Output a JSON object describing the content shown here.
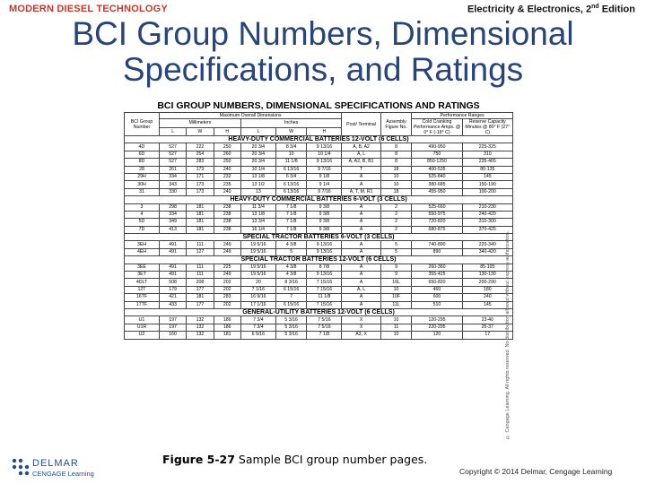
{
  "header": {
    "left": "MODERN DIESEL TECHNOLOGY",
    "right_main": "Electricity & Electronics, 2",
    "right_sup": "nd",
    "right_tail": " Edition"
  },
  "title": {
    "line1": "BCI Group Numbers, Dimensional",
    "line2": "Specifications, and Ratings"
  },
  "table": {
    "title": "BCI GROUP NUMBERS, DIMENSIONAL SPECIFICATIONS AND RATINGS",
    "headers": {
      "bci": "BCI Group Number",
      "max_dim": "Maximum Overall Dimensions",
      "mm": "Millimeters",
      "inches": "Inches",
      "post": "Post/ Terminal",
      "assembly": "Assembly Figure No.",
      "perf": "Performance Ranges",
      "cold": "Cold Cranking Performance Amps. @ 0° F (-18° C)",
      "reserve": "Reserve Capacity Minutes @ 80° F (27° C)",
      "L": "L",
      "W": "W",
      "H": "H"
    },
    "sections": [
      {
        "label": "HEAVY-DUTY COMMERCIAL BATTERIES 12-VOLT (6 CELLS)",
        "rows": [
          [
            "4D",
            "527",
            "222",
            "250",
            "20 3/4",
            "8 3/4",
            "9 13/16",
            "A, B, A2",
            "8",
            "490-950",
            "225-325"
          ],
          [
            "6D",
            "527",
            "254",
            "260",
            "20 3/4",
            "10",
            "10 1/4",
            "A, L",
            "8",
            "750",
            "310"
          ],
          [
            "8D",
            "527",
            "283",
            "250",
            "20 3/4",
            "11 1/8",
            "9 13/16",
            "A, A2, B, B1",
            "8",
            "850-1250",
            "235-465"
          ],
          [
            "28",
            "261",
            "173",
            "240",
            "10 1/4",
            "6 13/16",
            "9 7/16",
            "T",
            "18",
            "400-535",
            "80-135"
          ],
          [
            "29H",
            "334",
            "171",
            "232",
            "13 1/8",
            "6 3/4",
            "9 1/8",
            "A",
            "10",
            "525-840",
            "145"
          ],
          [
            "30H",
            "343",
            "173",
            "235",
            "13 1/2",
            "6 13/16",
            "9 1/4",
            "A",
            "10",
            "380-685",
            "150-190"
          ],
          [
            "31",
            "330",
            "173",
            "240",
            "13",
            "6 13/16",
            "9 7/16",
            "A, T, M, R1",
            "18",
            "455-950",
            "100-200"
          ]
        ]
      },
      {
        "label": "HEAVY-DUTY COMMERCIAL BATTERIES 6-VOLT (3 CELLS)",
        "rows": [
          [
            "3",
            "298",
            "181",
            "238",
            "11 3/4",
            "7 1/8",
            "9 3/8",
            "A",
            "2",
            "525-660",
            "210-230"
          ],
          [
            "4",
            "334",
            "181",
            "238",
            "13 1/8",
            "7 1/8",
            "9 3/8",
            "A",
            "2",
            "550-975",
            "240-420"
          ],
          [
            "5D",
            "349",
            "181",
            "238",
            "13 3/4",
            "7 1/8",
            "9 3/8",
            "A",
            "2",
            "720-820",
            "310-300"
          ],
          [
            "7D",
            "413",
            "181",
            "238",
            "16 1/4",
            "7 1/8",
            "9 3/8",
            "A",
            "2",
            "680-875",
            "370-425"
          ]
        ]
      },
      {
        "label": "SPECIAL TRACTOR BATTERIES 6-VOLT (3 CELLS)",
        "rows": [
          [
            "3EH",
            "491",
            "111",
            "249",
            "19 5/16",
            "4 3/8",
            "9 13/16",
            "A",
            "5",
            "740-890",
            "220-340"
          ],
          [
            "4EH",
            "491",
            "127",
            "249",
            "19 5/16",
            "5",
            "9 13/16",
            "A",
            "5",
            "890",
            "340-420"
          ]
        ]
      },
      {
        "label": "SPECIAL TRACTOR BATTERIES 12-VOLT (6 CELLS)",
        "rows": [
          [
            "3EE",
            "491",
            "111",
            "225",
            "19 5/16",
            "4 3/8",
            "8 7/8",
            "A",
            "9",
            "260-360",
            "85-105"
          ],
          [
            "3ET",
            "491",
            "111",
            "249",
            "19 5/16",
            "4 3/8",
            "9 13/16",
            "A",
            "9",
            "355-425",
            "130-130"
          ],
          [
            "4DLT",
            "508",
            "208",
            "202",
            "20",
            "8 3/16",
            "7 15/16",
            "A",
            "16L",
            "650-820",
            "200-290"
          ],
          [
            "12T",
            "179",
            "177",
            "202",
            "7 1/16",
            "6 15/16",
            "7 15/16",
            "A, L",
            "10",
            "460",
            "180"
          ],
          [
            "16TF",
            "421",
            "181",
            "283",
            "16 9/16",
            "7",
            "11 1/8",
            "A",
            "10F",
            "600",
            "240"
          ],
          [
            "17TF",
            "433",
            "177",
            "202",
            "17 1/16",
            "6 15/16",
            "7 15/16",
            "A",
            "11L",
            "510",
            "145"
          ]
        ]
      },
      {
        "label": "GENERAL-UTILITY BATTERIES 12-VOLT (6 CELLS)",
        "rows": [
          [
            "U1",
            "197",
            "132",
            "186",
            "7 3/4",
            "5 3/16",
            "7 5/16",
            "X",
            "10",
            "120-295",
            "23-40"
          ],
          [
            "U1R",
            "197",
            "132",
            "186",
            "7 3/4",
            "5 3/16",
            "7 5/16",
            "X",
            "11",
            "220-295",
            "25-37"
          ],
          [
            "U2",
            "160",
            "132",
            "181",
            "6 5/16",
            "5 3/16",
            "7 1/8",
            "A3, X",
            "10",
            "120",
            "17"
          ]
        ]
      }
    ]
  },
  "side_note": "© Cengage Learning. All rights reserved. No distribution allowed without express authorization.",
  "logo": {
    "top": "DELMAR",
    "bottom": "CENGAGE Learning"
  },
  "caption": {
    "figure": "Figure 5-27",
    "text": " Sample BCI group number pages."
  },
  "copyright": "Copyright © 2014 Delmar, Cengage Learning",
  "colors": {
    "header_left": "#c0392b",
    "title": "#27457a",
    "logo": "#1f4e8c"
  }
}
